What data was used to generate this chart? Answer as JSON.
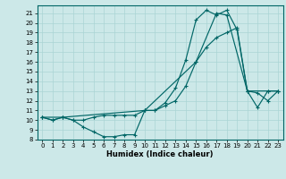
{
  "xlabel": "Humidex (Indice chaleur)",
  "bg_color": "#cce8e8",
  "line_color": "#006666",
  "grid_color": "#aad4d4",
  "xlim": [
    -0.5,
    23.5
  ],
  "ylim": [
    8,
    21.8
  ],
  "yticks": [
    8,
    9,
    10,
    11,
    12,
    13,
    14,
    15,
    16,
    17,
    18,
    19,
    20,
    21
  ],
  "xticks": [
    0,
    1,
    2,
    3,
    4,
    5,
    6,
    7,
    8,
    9,
    10,
    11,
    12,
    13,
    14,
    15,
    16,
    17,
    18,
    19,
    20,
    21,
    22,
    23
  ],
  "line1_x": [
    0,
    1,
    2,
    3,
    4,
    5,
    6,
    7,
    8,
    9,
    10,
    11,
    12,
    13,
    14,
    15,
    16,
    17,
    18,
    19,
    20,
    21,
    22,
    23
  ],
  "line1_y": [
    10.3,
    10.0,
    10.3,
    10.0,
    9.3,
    8.8,
    8.3,
    8.3,
    8.5,
    8.5,
    11.0,
    11.0,
    11.8,
    13.3,
    16.2,
    20.3,
    21.3,
    20.8,
    21.3,
    19.3,
    13.0,
    11.3,
    13.0,
    13.0
  ],
  "line2_x": [
    0,
    1,
    2,
    3,
    4,
    5,
    6,
    7,
    8,
    9,
    10,
    11,
    12,
    13,
    14,
    15,
    16,
    17,
    18,
    19,
    20,
    21,
    22,
    23
  ],
  "line2_y": [
    10.3,
    10.0,
    10.3,
    10.0,
    10.0,
    10.3,
    10.5,
    10.5,
    10.5,
    10.5,
    11.0,
    11.0,
    11.5,
    12.0,
    13.5,
    16.0,
    17.5,
    18.5,
    19.0,
    19.5,
    13.0,
    12.8,
    12.0,
    13.0
  ],
  "line3_x": [
    0,
    2,
    10,
    15,
    17,
    18,
    20,
    22,
    23
  ],
  "line3_y": [
    10.3,
    10.3,
    11.0,
    16.0,
    21.0,
    20.8,
    13.0,
    13.0,
    13.0
  ],
  "xlabel_fontsize": 6,
  "tick_fontsize": 5,
  "linewidth": 0.85,
  "markersize": 3.5
}
